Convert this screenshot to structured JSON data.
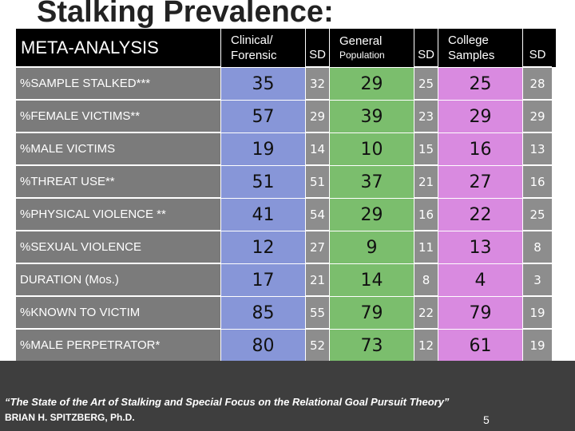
{
  "title": "Stalking Prevalence:",
  "table": {
    "headers": {
      "label": "META-ANALYSIS",
      "clinical_line1": "Clinical/",
      "clinical_line2": "Forensic",
      "sd1": "SD",
      "general_line1": "General",
      "general_line2": "Population",
      "sd2": "SD",
      "college_line1": "College",
      "college_line2": "Samples",
      "sd3": "SD"
    },
    "rows": [
      {
        "label": "%SAMPLE STALKED***",
        "clinical": "35",
        "sd1": "32",
        "general": "29",
        "sd2": "25",
        "college": "25",
        "sd3": "28"
      },
      {
        "label": "%FEMALE VICTIMS**",
        "clinical": "57",
        "sd1": "29",
        "general": "39",
        "sd2": "23",
        "college": "29",
        "sd3": "29"
      },
      {
        "label": "%MALE VICTIMS",
        "clinical": "19",
        "sd1": "14",
        "general": "10",
        "sd2": "15",
        "college": "16",
        "sd3": "13"
      },
      {
        "label": "%THREAT USE**",
        "clinical": "51",
        "sd1": "51",
        "general": "37",
        "sd2": "21",
        "college": "27",
        "sd3": "16"
      },
      {
        "label": "%PHYSICAL VIOLENCE **",
        "clinical": "41",
        "sd1": "54",
        "general": "29",
        "sd2": "16",
        "college": "22",
        "sd3": "25"
      },
      {
        "label": "%SEXUAL VIOLENCE",
        "clinical": "12",
        "sd1": "27",
        "general": "9",
        "sd2": "11",
        "college": "13",
        "sd3": "8"
      },
      {
        "label": "DURATION (Mos.)",
        "clinical": "17",
        "sd1": "21",
        "general": "14",
        "sd2": "8",
        "college": "4",
        "sd3": "3"
      },
      {
        "label": "%KNOWN TO VICTIM",
        "clinical": "85",
        "sd1": "55",
        "general": "79",
        "sd2": "22",
        "college": "79",
        "sd3": "19"
      },
      {
        "label": "%MALE PERPETRATOR*",
        "clinical": "80",
        "sd1": "52",
        "general": "73",
        "sd2": "12",
        "college": "61",
        "sd3": "19"
      }
    ]
  },
  "footer": {
    "citation": "“The State of the Art of Stalking and Special Focus on the Relational Goal Pursuit Theory”",
    "author": "BRIAN H. SPITZBERG, Ph.D.",
    "page": "5"
  },
  "colors": {
    "clinical": "#8796d8",
    "general": "#7bbe6d",
    "college": "#d98ae0"
  }
}
